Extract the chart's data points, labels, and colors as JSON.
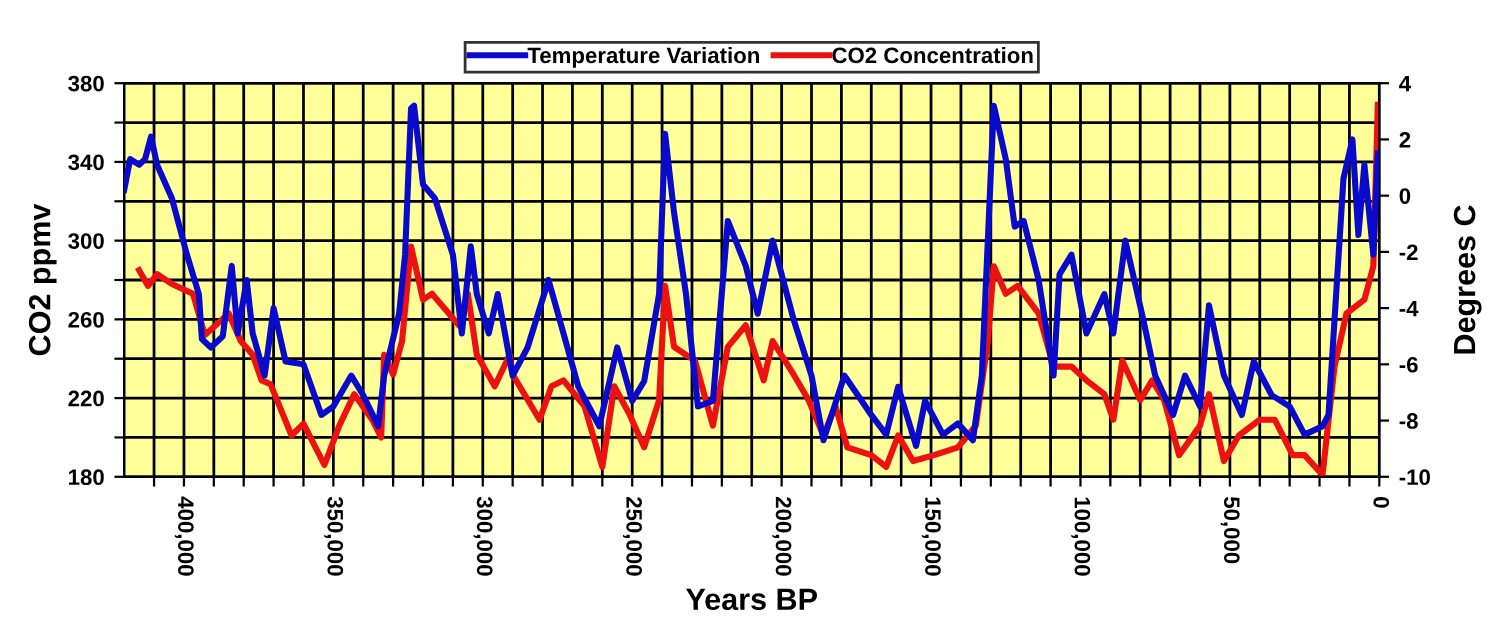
{
  "chart_data": {
    "type": "line",
    "xlabel": "Years BP",
    "ylabel": "CO2 ppmv",
    "y2label": "Degrees C",
    "legend": "top",
    "grid": true,
    "line_style": "solid",
    "marker": "none",
    "xlim": [
      420000,
      0
    ],
    "xticks": [
      {
        "value": 410000,
        "label": null
      },
      {
        "value": 400000,
        "label": "400,000"
      },
      {
        "value": 390000,
        "label": null
      },
      {
        "value": 380000,
        "label": null
      },
      {
        "value": 370000,
        "label": null
      },
      {
        "value": 360000,
        "label": null
      },
      {
        "value": 350000,
        "label": "350,000"
      },
      {
        "value": 340000,
        "label": null
      },
      {
        "value": 330000,
        "label": null
      },
      {
        "value": 320000,
        "label": null
      },
      {
        "value": 310000,
        "label": null
      },
      {
        "value": 300000,
        "label": "300,000"
      },
      {
        "value": 290000,
        "label": null
      },
      {
        "value": 280000,
        "label": null
      },
      {
        "value": 270000,
        "label": null
      },
      {
        "value": 260000,
        "label": null
      },
      {
        "value": 250000,
        "label": "250,000"
      },
      {
        "value": 240000,
        "label": null
      },
      {
        "value": 230000,
        "label": null
      },
      {
        "value": 220000,
        "label": null
      },
      {
        "value": 210000,
        "label": null
      },
      {
        "value": 200000,
        "label": "200,000"
      },
      {
        "value": 190000,
        "label": null
      },
      {
        "value": 180000,
        "label": null
      },
      {
        "value": 170000,
        "label": null
      },
      {
        "value": 160000,
        "label": null
      },
      {
        "value": 150000,
        "label": "150,000"
      },
      {
        "value": 140000,
        "label": null
      },
      {
        "value": 130000,
        "label": null
      },
      {
        "value": 120000,
        "label": null
      },
      {
        "value": 110000,
        "label": null
      },
      {
        "value": 100000,
        "label": "100,000"
      },
      {
        "value": 90000,
        "label": null
      },
      {
        "value": 80000,
        "label": null
      },
      {
        "value": 70000,
        "label": null
      },
      {
        "value": 60000,
        "label": null
      },
      {
        "value": 50000,
        "label": "50,000"
      },
      {
        "value": 40000,
        "label": null
      },
      {
        "value": 30000,
        "label": null
      },
      {
        "value": 20000,
        "label": null
      },
      {
        "value": 10000,
        "label": null
      },
      0
    ],
    "ylim": [
      180,
      380
    ],
    "yticks": [
      180,
      {
        "value": 200,
        "label": null
      },
      220,
      {
        "value": 240,
        "label": null
      },
      260,
      {
        "value": 280,
        "label": null
      },
      300,
      {
        "value": 320,
        "label": null
      },
      340,
      {
        "value": 360,
        "label": null
      },
      380
    ],
    "y2lim": [
      -10,
      4
    ],
    "y2ticks": [
      -10,
      -8,
      -6,
      -4,
      -2,
      0,
      2,
      4
    ],
    "series": [
      {
        "name": "Temperature Variation",
        "color": "#0a0acc",
        "axis": "y2",
        "x": [
          420000,
          418000,
          415000,
          413000,
          411000,
          409000,
          404000,
          399000,
          395000,
          394000,
          391000,
          387000,
          384000,
          382000,
          379000,
          377000,
          373000,
          370000,
          366000,
          360000,
          354000,
          350000,
          344000,
          340000,
          335000,
          333000,
          328000,
          326000,
          324000,
          323000,
          320000,
          316000,
          310000,
          307000,
          304000,
          302000,
          298000,
          295000,
          290000,
          285000,
          278000,
          273000,
          268000,
          261000,
          255000,
          250000,
          246000,
          241000,
          239000,
          236000,
          232000,
          228000,
          223000,
          218000,
          212000,
          208000,
          203000,
          196000,
          190000,
          186000,
          179000,
          170000,
          165000,
          161000,
          155000,
          152000,
          146000,
          141000,
          136000,
          133000,
          129000,
          125000,
          122000,
          119000,
          114000,
          109000,
          107000,
          103000,
          98000,
          92000,
          89000,
          85000,
          79000,
          75000,
          69000,
          65000,
          60000,
          57000,
          52000,
          46000,
          42000,
          36000,
          30000,
          25000,
          19000,
          17000,
          12000,
          9000,
          7000,
          5000,
          2000,
          500
        ],
        "values": [
          0.2,
          1.3,
          1.1,
          1.3,
          2.1,
          1.1,
          -0.1,
          -2.1,
          -3.5,
          -5.1,
          -5.4,
          -5.0,
          -2.5,
          -4.9,
          -3.0,
          -4.9,
          -6.4,
          -4.0,
          -5.9,
          -6.0,
          -7.8,
          -7.5,
          -6.4,
          -7.1,
          -8.2,
          -6.4,
          -4.2,
          -2.1,
          3.1,
          3.2,
          0.4,
          -0.1,
          -2.1,
          -4.9,
          -1.8,
          -3.5,
          -4.9,
          -3.5,
          -6.4,
          -5.4,
          -3.0,
          -4.9,
          -6.8,
          -8.2,
          -5.4,
          -7.3,
          -6.6,
          -3.5,
          2.2,
          -0.6,
          -3.5,
          -7.5,
          -7.3,
          -0.9,
          -2.5,
          -4.2,
          -1.6,
          -4.4,
          -6.4,
          -8.7,
          -6.4,
          -7.8,
          -8.5,
          -6.8,
          -8.9,
          -7.3,
          -8.5,
          -8.1,
          -8.7,
          -6.4,
          3.2,
          1.3,
          -1.1,
          -0.9,
          -3.0,
          -6.4,
          -2.8,
          -2.1,
          -4.9,
          -3.5,
          -4.9,
          -1.6,
          -4.4,
          -6.4,
          -7.8,
          -6.4,
          -7.5,
          -3.9,
          -6.4,
          -7.8,
          -5.9,
          -7.1,
          -7.5,
          -8.5,
          -8.2,
          -7.8,
          0.6,
          2.0,
          -1.4,
          1.1,
          -2.1,
          1.5
        ]
      },
      {
        "name": "CO2 Concentration",
        "color": "#ee1111",
        "x": [
          415000,
          412000,
          409000,
          404000,
          397000,
          393000,
          385000,
          381000,
          377000,
          374000,
          371000,
          364000,
          360000,
          353000,
          348000,
          343000,
          337000,
          334000,
          333000,
          330000,
          327000,
          324000,
          320000,
          317000,
          308000,
          305000,
          302000,
          296000,
          291000,
          290000,
          281000,
          277000,
          273000,
          266000,
          260000,
          256000,
          251000,
          246000,
          241000,
          239000,
          236000,
          229000,
          223000,
          218000,
          212000,
          206000,
          203000,
          196000,
          191000,
          186000,
          182000,
          178000,
          170000,
          165000,
          161000,
          156000,
          149000,
          141000,
          135000,
          131000,
          129000,
          125000,
          121000,
          114000,
          109000,
          103000,
          98000,
          92000,
          89000,
          86000,
          80000,
          76000,
          72000,
          67000,
          60000,
          57000,
          52000,
          47000,
          40000,
          35000,
          29000,
          25000,
          19000,
          15000,
          11000,
          5000,
          2000,
          500
        ],
        "values": [
          285,
          277,
          283,
          278,
          273,
          252,
          263,
          249,
          242,
          229,
          227,
          201,
          207,
          186,
          206,
          222,
          209,
          200,
          242,
          232,
          249,
          297,
          270,
          273,
          257,
          273,
          242,
          226,
          242,
          232,
          209,
          226,
          229,
          216,
          185,
          226,
          212,
          195,
          219,
          277,
          246,
          239,
          206,
          246,
          257,
          229,
          249,
          232,
          219,
          201,
          216,
          195,
          191,
          185,
          201,
          188,
          191,
          195,
          206,
          249,
          287,
          273,
          277,
          263,
          236,
          236,
          229,
          222,
          209,
          239,
          219,
          229,
          219,
          191,
          206,
          222,
          188,
          201,
          209,
          209,
          191,
          191,
          181,
          236,
          263,
          270,
          287,
          369
        ]
      }
    ]
  }
}
